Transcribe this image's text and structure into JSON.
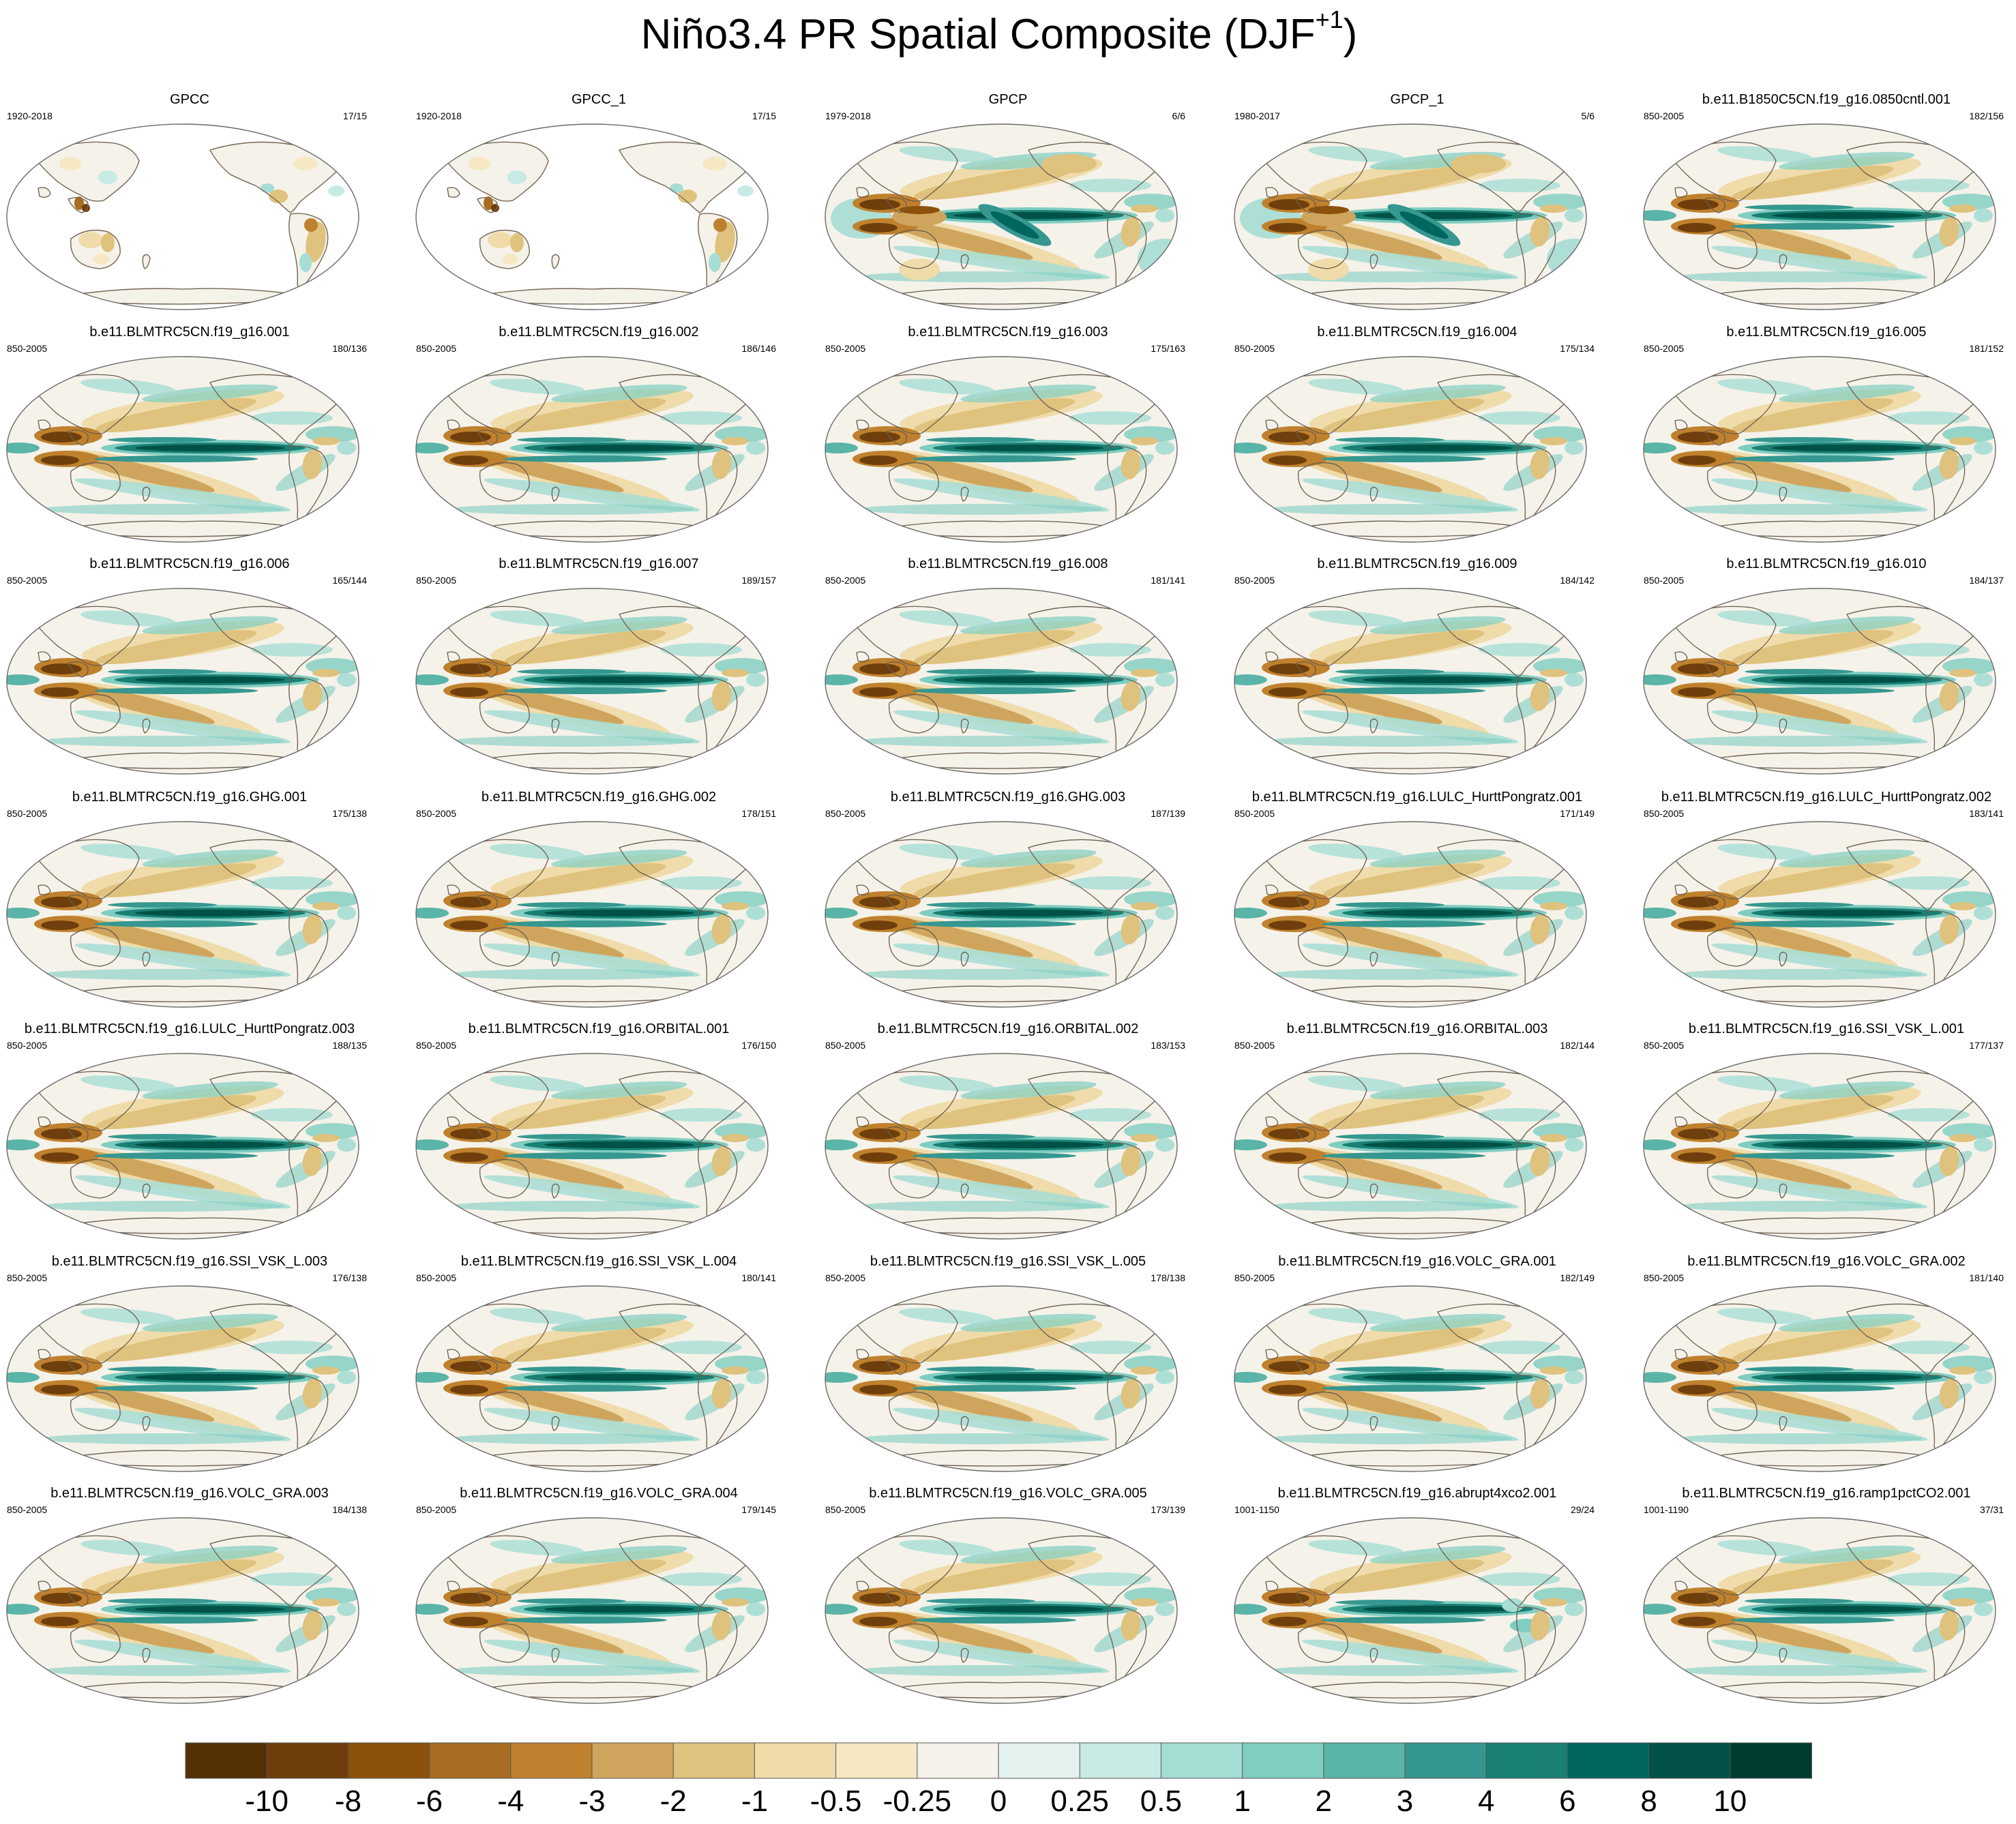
{
  "figure": {
    "title_main": "Niño3.4 PR Spatial Composite (DJF",
    "title_sup": "+1",
    "title_end": ")"
  },
  "panels": [
    {
      "title": "GPCC",
      "years": "1920-2018",
      "ratio": "17/15",
      "variant": "gpcc"
    },
    {
      "title": "GPCC_1",
      "years": "1920-2018",
      "ratio": "17/15",
      "variant": "gpcc"
    },
    {
      "title": "GPCP",
      "years": "1979-2018",
      "ratio": "6/6",
      "variant": "gpcp"
    },
    {
      "title": "GPCP_1",
      "years": "1980-2017",
      "ratio": "5/6",
      "variant": "gpcp"
    },
    {
      "title": "b.e11.B1850C5CN.f19_g16.0850cntl.001",
      "years": "850-2005",
      "ratio": "182/156",
      "variant": "model"
    },
    {
      "title": "b.e11.BLMTRC5CN.f19_g16.001",
      "years": "850-2005",
      "ratio": "180/136",
      "variant": "model"
    },
    {
      "title": "b.e11.BLMTRC5CN.f19_g16.002",
      "years": "850-2005",
      "ratio": "186/146",
      "variant": "model"
    },
    {
      "title": "b.e11.BLMTRC5CN.f19_g16.003",
      "years": "850-2005",
      "ratio": "175/163",
      "variant": "model"
    },
    {
      "title": "b.e11.BLMTRC5CN.f19_g16.004",
      "years": "850-2005",
      "ratio": "175/134",
      "variant": "model"
    },
    {
      "title": "b.e11.BLMTRC5CN.f19_g16.005",
      "years": "850-2005",
      "ratio": "181/152",
      "variant": "model"
    },
    {
      "title": "b.e11.BLMTRC5CN.f19_g16.006",
      "years": "850-2005",
      "ratio": "165/144",
      "variant": "model"
    },
    {
      "title": "b.e11.BLMTRC5CN.f19_g16.007",
      "years": "850-2005",
      "ratio": "189/157",
      "variant": "model"
    },
    {
      "title": "b.e11.BLMTRC5CN.f19_g16.008",
      "years": "850-2005",
      "ratio": "181/141",
      "variant": "model"
    },
    {
      "title": "b.e11.BLMTRC5CN.f19_g16.009",
      "years": "850-2005",
      "ratio": "184/142",
      "variant": "model"
    },
    {
      "title": "b.e11.BLMTRC5CN.f19_g16.010",
      "years": "850-2005",
      "ratio": "184/137",
      "variant": "model"
    },
    {
      "title": "b.e11.BLMTRC5CN.f19_g16.GHG.001",
      "years": "850-2005",
      "ratio": "175/138",
      "variant": "model"
    },
    {
      "title": "b.e11.BLMTRC5CN.f19_g16.GHG.002",
      "years": "850-2005",
      "ratio": "178/151",
      "variant": "model"
    },
    {
      "title": "b.e11.BLMTRC5CN.f19_g16.GHG.003",
      "years": "850-2005",
      "ratio": "187/139",
      "variant": "model"
    },
    {
      "title": "b.e11.BLMTRC5CN.f19_g16.LULC_HurttPongratz.001",
      "years": "850-2005",
      "ratio": "171/149",
      "variant": "model"
    },
    {
      "title": "b.e11.BLMTRC5CN.f19_g16.LULC_HurttPongratz.002",
      "years": "850-2005",
      "ratio": "183/141",
      "variant": "model"
    },
    {
      "title": "b.e11.BLMTRC5CN.f19_g16.LULC_HurttPongratz.003",
      "years": "850-2005",
      "ratio": "188/135",
      "variant": "model"
    },
    {
      "title": "b.e11.BLMTRC5CN.f19_g16.ORBITAL.001",
      "years": "850-2005",
      "ratio": "176/150",
      "variant": "model"
    },
    {
      "title": "b.e11.BLMTRC5CN.f19_g16.ORBITAL.002",
      "years": "850-2005",
      "ratio": "183/153",
      "variant": "model"
    },
    {
      "title": "b.e11.BLMTRC5CN.f19_g16.ORBITAL.003",
      "years": "850-2005",
      "ratio": "182/144",
      "variant": "model"
    },
    {
      "title": "b.e11.BLMTRC5CN.f19_g16.SSI_VSK_L.001",
      "years": "850-2005",
      "ratio": "177/137",
      "variant": "model"
    },
    {
      "title": "b.e11.BLMTRC5CN.f19_g16.SSI_VSK_L.003",
      "years": "850-2005",
      "ratio": "176/138",
      "variant": "model"
    },
    {
      "title": "b.e11.BLMTRC5CN.f19_g16.SSI_VSK_L.004",
      "years": "850-2005",
      "ratio": "180/141",
      "variant": "model"
    },
    {
      "title": "b.e11.BLMTRC5CN.f19_g16.SSI_VSK_L.005",
      "years": "850-2005",
      "ratio": "178/138",
      "variant": "model"
    },
    {
      "title": "b.e11.BLMTRC5CN.f19_g16.VOLC_GRA.001",
      "years": "850-2005",
      "ratio": "182/149",
      "variant": "model"
    },
    {
      "title": "b.e11.BLMTRC5CN.f19_g16.VOLC_GRA.002",
      "years": "850-2005",
      "ratio": "181/140",
      "variant": "model"
    },
    {
      "title": "b.e11.BLMTRC5CN.f19_g16.VOLC_GRA.003",
      "years": "850-2005",
      "ratio": "184/138",
      "variant": "model"
    },
    {
      "title": "b.e11.BLMTRC5CN.f19_g16.VOLC_GRA.004",
      "years": "850-2005",
      "ratio": "179/145",
      "variant": "model"
    },
    {
      "title": "b.e11.BLMTRC5CN.f19_g16.VOLC_GRA.005",
      "years": "850-2005",
      "ratio": "173/139",
      "variant": "model"
    },
    {
      "title": "b.e11.BLMTRC5CN.f19_g16.abrupt4xco2.001",
      "years": "1001-1150",
      "ratio": "29/24",
      "variant": "abrupt"
    },
    {
      "title": "b.e11.BLMTRC5CN.f19_g16.ramp1pctCO2.001",
      "years": "1001-1190",
      "ratio": "37/31",
      "variant": "model"
    }
  ],
  "colorbar": {
    "colors": [
      "#543005",
      "#6e3f0c",
      "#8c510a",
      "#a86d22",
      "#bf812d",
      "#cfa55e",
      "#dfc27d",
      "#efdcaa",
      "#f6e8c3",
      "#f5f2ea",
      "#e3f2ef",
      "#c7eae5",
      "#a6ddd5",
      "#80cdc1",
      "#5ab4a8",
      "#35978f",
      "#1a8074",
      "#01665e",
      "#015146",
      "#003c30"
    ],
    "ticks": [
      "-10",
      "-8",
      "-6",
      "-4",
      "-3",
      "-2",
      "-1",
      "-0.5",
      "-0.25",
      "0",
      "0.25",
      "0.5",
      "1",
      "2",
      "3",
      "4",
      "6",
      "8",
      "10"
    ]
  }
}
